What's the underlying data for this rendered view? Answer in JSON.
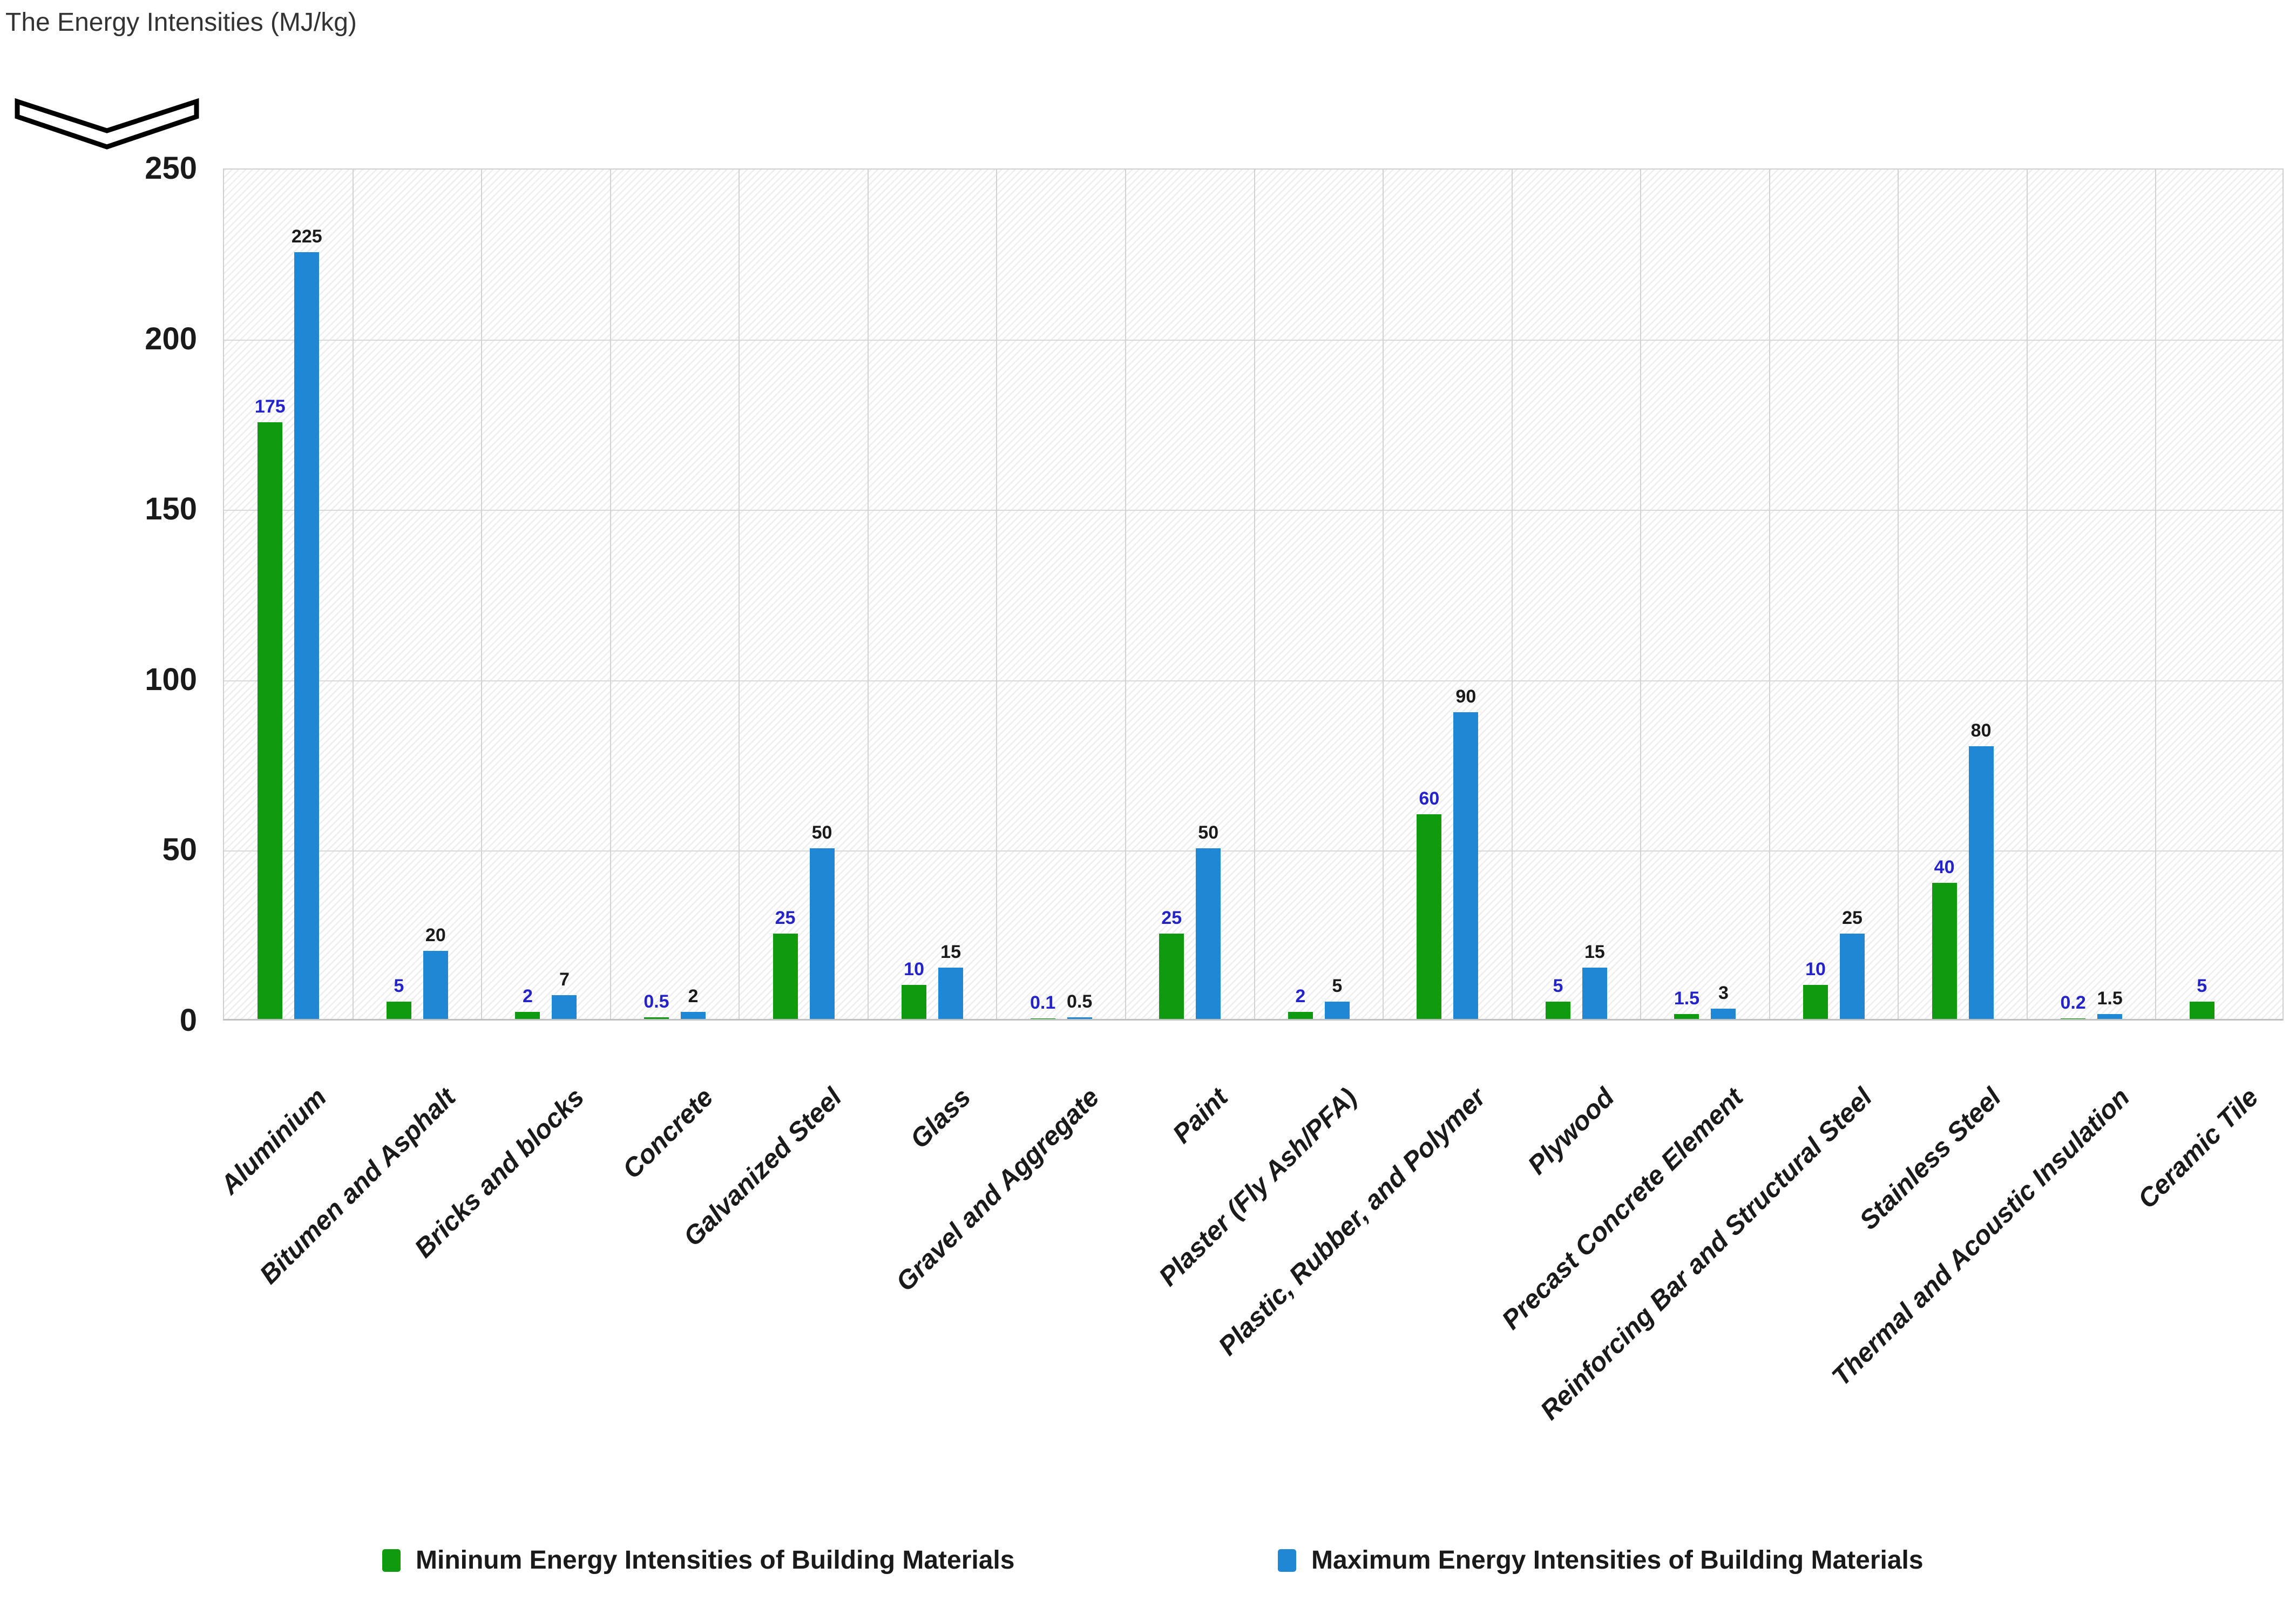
{
  "chart_data": {
    "type": "bar",
    "title": "The Energy Intensities (MJ/kg)",
    "categories": [
      "Aluminium",
      "Bitumen and Asphalt",
      "Bricks and blocks",
      "Concrete",
      "Galvanized Steel",
      "Glass",
      "Gravel and Aggregate",
      "Paint",
      "Plaster (Fly Ash/PFA)",
      "Plastic, Rubber, and Polymer",
      "Plywood",
      "Precast Concrete Element",
      "Reinforcing Bar and Structural Steel",
      "Stainless Steel",
      "Thermal and Acoustic Insulation",
      "Ceramic Tile"
    ],
    "series": [
      {
        "name": "Mininum Energy Intensities of Building Materials",
        "color": "#0f9a0f",
        "data_label_color": "#2323c8",
        "values": [
          175,
          5,
          2,
          0.5,
          25,
          10,
          0.1,
          25,
          2,
          60,
          5,
          1.5,
          10,
          40,
          0.2,
          5
        ]
      },
      {
        "name": "Maximum Energy Intensities of Building Materials",
        "color": "#1f87d4",
        "data_label_color": "#1a1a1a",
        "values": [
          225,
          20,
          7,
          2,
          50,
          15,
          0.5,
          50,
          5,
          90,
          15,
          3,
          25,
          80,
          1.5,
          null
        ]
      }
    ],
    "ylabel": "",
    "xlabel": "",
    "ylim": [
      0,
      250
    ],
    "yticks": [
      0,
      50,
      100,
      150,
      200,
      250
    ],
    "grid": true,
    "legend_position": "bottom",
    "axis_break_marker": true
  }
}
